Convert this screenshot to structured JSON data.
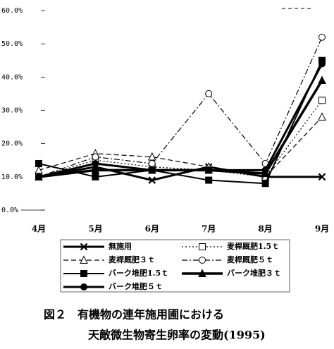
{
  "chart_data": {
    "type": "line",
    "categories": [
      "4月",
      "5月",
      "6月",
      "7月",
      "8月",
      "9月"
    ],
    "series": [
      {
        "name": "無施用",
        "color": "#000000",
        "values": [
          10,
          13,
          9,
          13,
          10,
          10
        ]
      },
      {
        "name": "麦桿厩肥1.5ｔ",
        "color": "#000000",
        "values": [
          10,
          15,
          13,
          12,
          10,
          33
        ]
      },
      {
        "name": "麦桿厩肥３ｔ",
        "color": "#000000",
        "values": [
          12,
          17,
          16,
          13,
          10,
          28
        ]
      },
      {
        "name": "麦桿厩肥５ｔ",
        "color": "#000000",
        "values": [
          10,
          16,
          14,
          35,
          14,
          52
        ]
      },
      {
        "name": "バーク堆肥1.5ｔ",
        "color": "#000000",
        "values": [
          14,
          10,
          12,
          9,
          8,
          45
        ]
      },
      {
        "name": "バーク堆肥３ｔ",
        "color": "#000000",
        "values": [
          10,
          12,
          12,
          12,
          11,
          39
        ]
      },
      {
        "name": "バーク堆肥５ｔ",
        "color": "#000000",
        "values": [
          10,
          14,
          12,
          12,
          12,
          44
        ]
      }
    ],
    "ylim": [
      0,
      60
    ],
    "yticks": [
      {
        "value": 0,
        "label": "0.0%"
      },
      {
        "value": 10,
        "label": "10.0%"
      },
      {
        "value": 20,
        "label": "20.0%"
      },
      {
        "value": 30,
        "label": "30.0%"
      },
      {
        "value": 40,
        "label": "40.0%"
      },
      {
        "value": 50,
        "label": "50.0%"
      },
      {
        "value": 60,
        "label": "60.0%"
      }
    ],
    "caption": [
      "図２　有機物の連年施用圃における",
      "天敵微生物寄生卵率の変動(1995)"
    ]
  }
}
